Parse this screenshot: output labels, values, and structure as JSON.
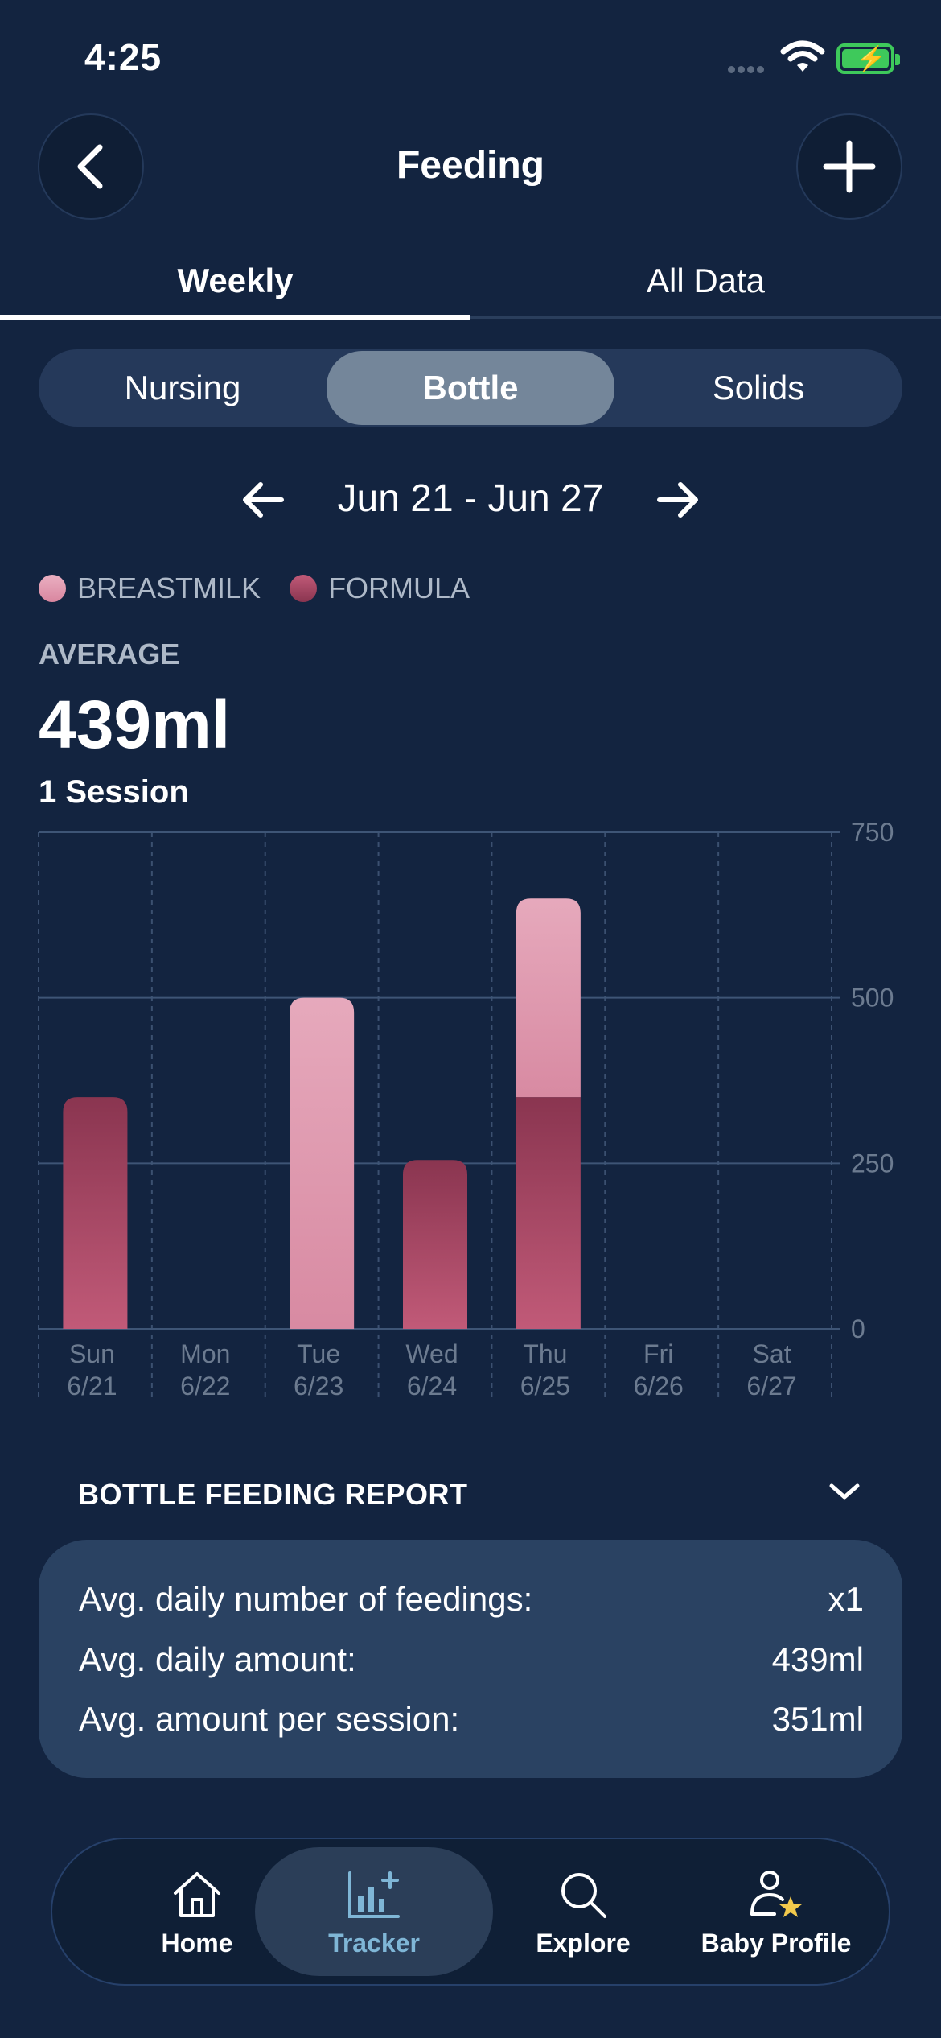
{
  "status_bar": {
    "time": "4:25"
  },
  "header": {
    "title": "Feeding"
  },
  "tabs": [
    {
      "label": "Weekly"
    },
    {
      "label": "All Data"
    }
  ],
  "segments": [
    {
      "label": "Nursing"
    },
    {
      "label": "Bottle"
    },
    {
      "label": "Solids"
    }
  ],
  "week": {
    "range": "Jun 21 - Jun 27"
  },
  "legend": [
    {
      "label": "BREASTMILK",
      "color": "#e29cb3"
    },
    {
      "label": "FORMULA",
      "color": "#b24a67"
    }
  ],
  "summary": {
    "average_label": "AVERAGE",
    "average_value": "439ml",
    "sessions": "1 Session"
  },
  "chart_data": {
    "type": "bar",
    "stacked": true,
    "categories": [
      "Sun",
      "Mon",
      "Tue",
      "Wed",
      "Thu",
      "Fri",
      "Sat"
    ],
    "dates": [
      "6/21",
      "6/22",
      "6/23",
      "6/24",
      "6/25",
      "6/26",
      "6/27"
    ],
    "series": [
      {
        "name": "FORMULA",
        "color": "#b24a67",
        "values": [
          350,
          0,
          0,
          255,
          350,
          0,
          0
        ]
      },
      {
        "name": "BREASTMILK",
        "color": "#e29cb3",
        "values": [
          0,
          0,
          500,
          0,
          300,
          0,
          0
        ]
      }
    ],
    "yticks": [
      0,
      250,
      500,
      750
    ],
    "ylim": [
      0,
      750
    ],
    "grid": true,
    "yaxis_position": "right"
  },
  "report": {
    "title": "BOTTLE FEEDING REPORT",
    "rows": [
      {
        "label": "Avg. daily number of feedings:",
        "value": "x1"
      },
      {
        "label": "Avg. daily amount:",
        "value": "439ml"
      },
      {
        "label": "Avg. amount per session:",
        "value": "351ml"
      }
    ]
  },
  "bottom_nav": [
    {
      "label": "Home",
      "icon": "home-icon"
    },
    {
      "label": "Tracker",
      "icon": "tracker-chart-icon"
    },
    {
      "label": "Explore",
      "icon": "search-icon"
    },
    {
      "label": "Baby Profile",
      "icon": "baby-profile-icon"
    }
  ]
}
